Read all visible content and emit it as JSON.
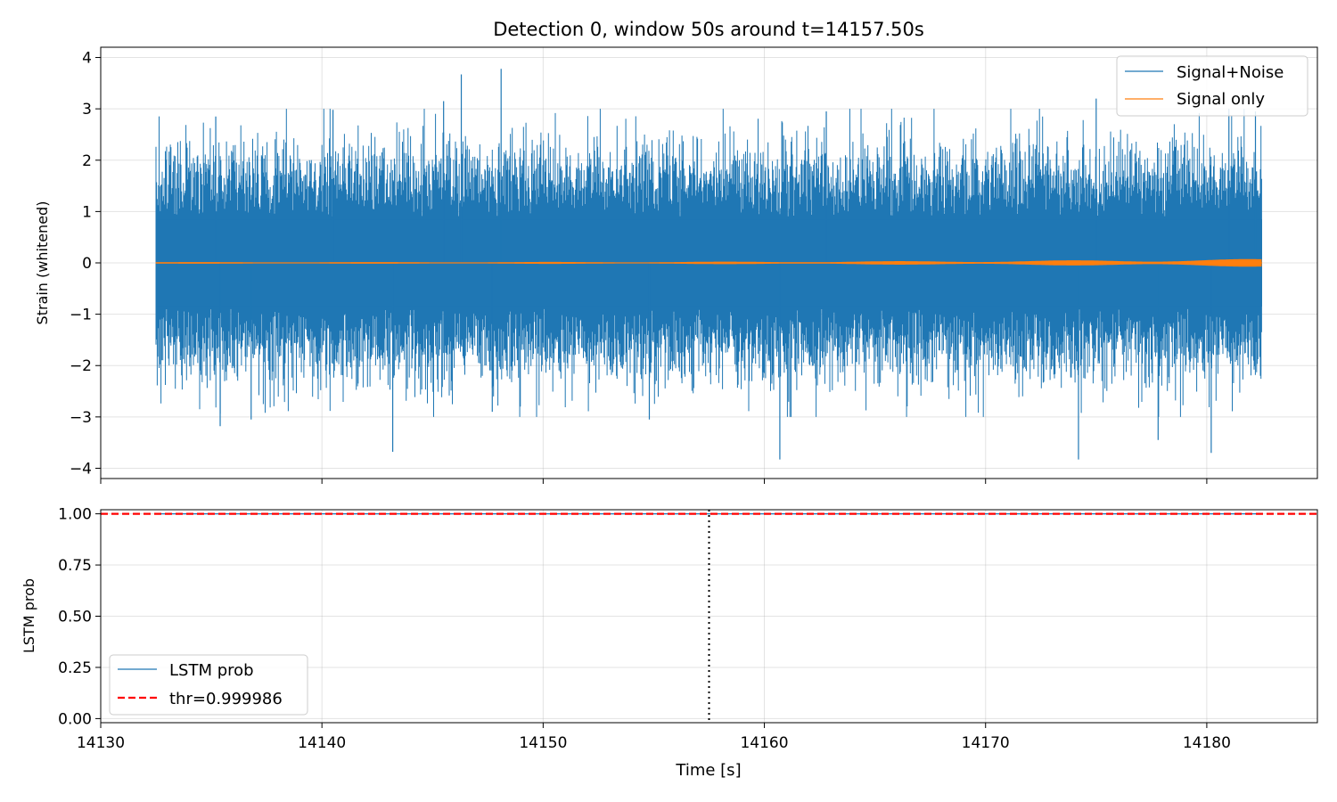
{
  "chart_data": [
    {
      "type": "line",
      "title": "Detection 0, window 50s around t=14157.50s",
      "xlabel": "",
      "ylabel": "Strain (whitened)",
      "xlim": [
        14130,
        14185
      ],
      "ylim": [
        -4.2,
        4.2
      ],
      "yticks": [
        "−4",
        "−3",
        "−2",
        "−1",
        "0",
        "1",
        "2",
        "3",
        "4"
      ],
      "ytick_values": [
        -4,
        -3,
        -2,
        -1,
        0,
        1,
        2,
        3,
        4
      ],
      "grid": true,
      "legend_position": "top-right",
      "series": [
        {
          "name": "Signal+Noise",
          "color": "#1f77b4",
          "t_range": [
            14132.5,
            14182.5
          ],
          "envelope_abs": 2.0,
          "peaks": [
            {
              "t": 14135.2,
              "y": 2.85
            },
            {
              "t": 14135.4,
              "y": -3.18
            },
            {
              "t": 14136.8,
              "y": -3.05
            },
            {
              "t": 14140.5,
              "y": 2.98
            },
            {
              "t": 14143.2,
              "y": -3.68
            },
            {
              "t": 14145.5,
              "y": 3.15
            },
            {
              "t": 14146.3,
              "y": 3.67
            },
            {
              "t": 14148.1,
              "y": 3.78
            },
            {
              "t": 14147.7,
              "y": -2.9
            },
            {
              "t": 14154.8,
              "y": -3.05
            },
            {
              "t": 14160.7,
              "y": -3.83
            },
            {
              "t": 14162.8,
              "y": 2.95
            },
            {
              "t": 14175.0,
              "y": 3.2
            },
            {
              "t": 14174.2,
              "y": -3.83
            },
            {
              "t": 14177.8,
              "y": -3.45
            },
            {
              "t": 14180.2,
              "y": -3.7
            },
            {
              "t": 14181.0,
              "y": 3.0
            },
            {
              "t": 14182.2,
              "y": 2.95
            }
          ]
        },
        {
          "name": "Signal only",
          "color": "#ff7f0e",
          "t_range": [
            14132.5,
            14182.5
          ],
          "amplitude": 0.04
        }
      ]
    },
    {
      "type": "line",
      "title": "",
      "xlabel": "Time [s]",
      "ylabel": "LSTM prob",
      "xlim": [
        14130,
        14185
      ],
      "ylim": [
        -0.02,
        1.02
      ],
      "xticks": [
        "14130",
        "14140",
        "14150",
        "14160",
        "14170",
        "14180"
      ],
      "xtick_values": [
        14130,
        14140,
        14150,
        14160,
        14170,
        14180
      ],
      "yticks": [
        "0.00",
        "0.25",
        "0.50",
        "0.75",
        "1.00"
      ],
      "ytick_values": [
        0,
        0.25,
        0.5,
        0.75,
        1.0
      ],
      "grid": true,
      "legend_position": "bottom-left",
      "series": [
        {
          "name": "LSTM prob",
          "color": "#1f77b4",
          "x": [
            14132.5,
            14182.5
          ],
          "y": [
            1.0,
            1.0
          ]
        },
        {
          "name": "thr=0.999986",
          "color": "#ff0000",
          "style": "dashed",
          "value": 0.999986
        }
      ],
      "vline": {
        "x": 14157.5,
        "style": "dotted",
        "color": "#000000"
      }
    }
  ]
}
